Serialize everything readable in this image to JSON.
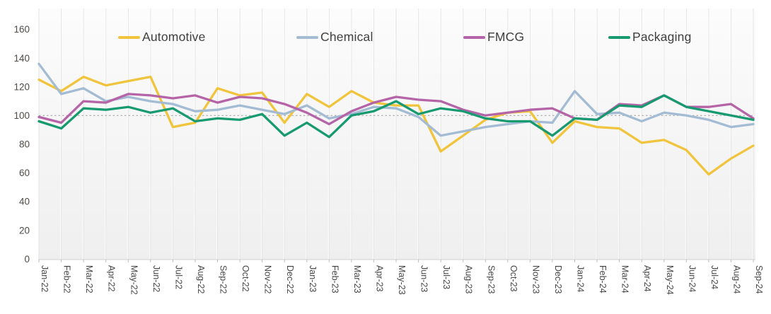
{
  "chart_data": {
    "type": "line",
    "title": "",
    "xlabel": "",
    "ylabel": "",
    "categories": [
      "Jan-22",
      "Feb-22",
      "Mar-22",
      "Apr-22",
      "May-22",
      "Jun-22",
      "Jul-22",
      "Aug-22",
      "Sep-22",
      "Oct-22",
      "Nov-22",
      "Dec-22",
      "Jan-23",
      "Feb-23",
      "Mar-23",
      "Apr-23",
      "May-23",
      "Jun-23",
      "Jul-23",
      "Aug-23",
      "Sep-23",
      "Oct-23",
      "Nov-23",
      "Dec-23",
      "Jan-24",
      "Feb-24",
      "Mar-24",
      "Apr-24",
      "May-24",
      "Jun-24",
      "Jul-24",
      "Aug-24",
      "Sep-24"
    ],
    "series": [
      {
        "name": "Automotive",
        "color": "#F0C43C",
        "values": [
          125,
          117,
          127,
          121,
          124,
          127,
          92,
          95,
          119,
          114,
          116,
          95,
          115,
          106,
          117,
          109,
          107,
          107,
          75,
          86,
          97,
          102,
          103,
          81,
          96,
          92,
          91,
          81,
          83,
          76,
          59,
          70,
          79
        ]
      },
      {
        "name": "Chemical",
        "color": "#A3BCD4",
        "values": [
          136,
          115,
          119,
          110,
          113,
          110,
          108,
          103,
          104,
          107,
          104,
          101,
          107,
          98,
          101,
          106,
          105,
          99,
          86,
          89,
          92,
          94,
          96,
          95,
          117,
          101,
          102,
          96,
          102,
          100,
          97,
          92,
          94
        ]
      },
      {
        "name": "FMCG",
        "color": "#B565A7",
        "values": [
          99,
          95,
          110,
          109,
          115,
          114,
          112,
          114,
          109,
          113,
          112,
          108,
          102,
          94,
          103,
          109,
          113,
          111,
          110,
          104,
          100,
          102,
          104,
          105,
          98,
          97,
          108,
          107,
          114,
          106,
          106,
          108,
          98
        ]
      },
      {
        "name": "Packaging",
        "color": "#179A70",
        "values": [
          96,
          91,
          105,
          104,
          106,
          102,
          105,
          96,
          98,
          97,
          101,
          86,
          95,
          85,
          100,
          103,
          110,
          101,
          105,
          103,
          98,
          96,
          96,
          86,
          98,
          97,
          107,
          106,
          114,
          106,
          103,
          100,
          97
        ]
      }
    ],
    "y_ticks": [
      0,
      20,
      40,
      60,
      80,
      100,
      120,
      140,
      160
    ],
    "ylim": [
      0,
      174
    ],
    "reference_line": 100,
    "grid": "vertical-only",
    "legend_position": "top"
  },
  "colors": {
    "reference_line": "#a8a8a8",
    "grid_line": "#ffffff",
    "grid_shadow": "#e3e3e3",
    "axis_line": "#cfcfcf",
    "tick_mark": "#bdbdbd",
    "y_label_text": "#4e4a47",
    "x_label_text": "#474747",
    "legend_text": "#3f3f3f",
    "plot_bg_top": "#fcfcfc",
    "plot_bg_bottom": "#efefef"
  }
}
